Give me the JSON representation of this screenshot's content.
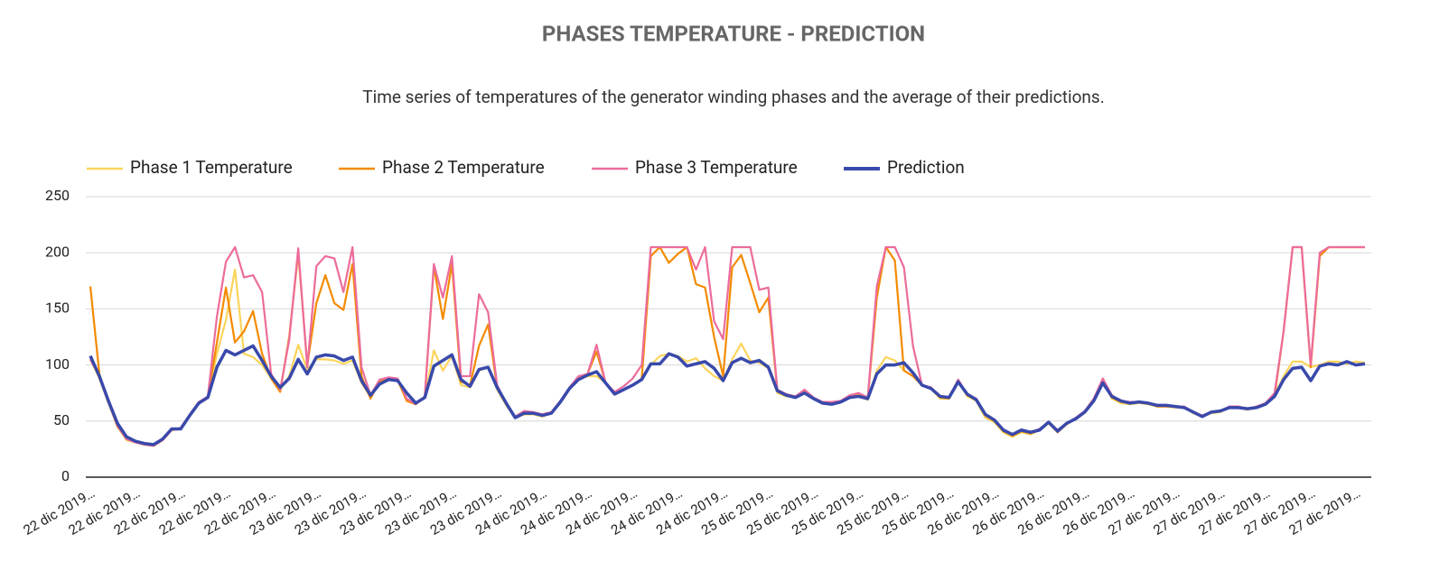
{
  "chart_data": {
    "type": "line",
    "title": "PHASES TEMPERATURE - PREDICTION",
    "subtitle": "Time series of temperatures of the generator winding phases and the average of their predictions.",
    "legend": "top-left",
    "grid": true,
    "ylim": [
      0,
      250
    ],
    "yticks": [
      0,
      50,
      100,
      150,
      200,
      250
    ],
    "categories": [
      "22 dic 2019…",
      null,
      null,
      null,
      null,
      "22 dic 2019…",
      null,
      null,
      null,
      null,
      "22 dic 2019…",
      null,
      null,
      null,
      null,
      "22 dic 2019…",
      null,
      null,
      null,
      null,
      "22 dic 2019…",
      null,
      null,
      null,
      null,
      "23 dic 2019…",
      null,
      null,
      null,
      null,
      "23 dic 2019…",
      null,
      null,
      null,
      null,
      "23 dic 2019…",
      null,
      null,
      null,
      null,
      "23 dic 2019…",
      null,
      null,
      null,
      null,
      "23 dic 2019…",
      null,
      null,
      null,
      null,
      "24 dic 2019…",
      null,
      null,
      null,
      null,
      "24 dic 2019…",
      null,
      null,
      null,
      null,
      "24 dic 2019…",
      null,
      null,
      null,
      null,
      "24 dic 2019…",
      null,
      null,
      null,
      null,
      "24 dic 2019…",
      null,
      null,
      null,
      null,
      "25 dic 2019…",
      null,
      null,
      null,
      null,
      "25 dic 2019…",
      null,
      null,
      null,
      null,
      "25 dic 2019…",
      null,
      null,
      null,
      null,
      "25 dic 2019…",
      null,
      null,
      null,
      null,
      "25 dic 2019…",
      null,
      null,
      null,
      null,
      "26 dic 2019…",
      null,
      null,
      null,
      null,
      "26 dic 2019…",
      null,
      null,
      null,
      null,
      "26 dic 2019…",
      null,
      null,
      null,
      null,
      "26 dic 2019…",
      null,
      null,
      null,
      null,
      "27 dic 2019…",
      null,
      null,
      null,
      null,
      "27 dic 2019…",
      null,
      null,
      null,
      null,
      "27 dic 2019…",
      null,
      null,
      null,
      null,
      "27 dic 2019…",
      null,
      null,
      null,
      null,
      "27 dic 2019…",
      null
    ],
    "series": [
      {
        "name": "Phase 1 Temperature",
        "color": "#fbd45b",
        "values": [
          105,
          88,
          66,
          46,
          33,
          31,
          29,
          28,
          33,
          42,
          43,
          55,
          66,
          71,
          110,
          140,
          185,
          110,
          107,
          100,
          88,
          78,
          90,
          118,
          96,
          105,
          105,
          104,
          101,
          104,
          84,
          71,
          85,
          88,
          86,
          68,
          65,
          71,
          113,
          95,
          108,
          82,
          80,
          95,
          98,
          78,
          64,
          53,
          56,
          56,
          54,
          57,
          67,
          79,
          87,
          90,
          90,
          84,
          74,
          78,
          82,
          87,
          100,
          108,
          110,
          108,
          103,
          106,
          97,
          90,
          86,
          105,
          119,
          104,
          102,
          97,
          75,
          72,
          71,
          76,
          70,
          66,
          65,
          67,
          71,
          72,
          69,
          95,
          107,
          104,
          95,
          90,
          82,
          79,
          70,
          70,
          86,
          72,
          68,
          53,
          49,
          40,
          36,
          40,
          38,
          42,
          48,
          40,
          47,
          52,
          58,
          68,
          86,
          70,
          66,
          65,
          66,
          65,
          63,
          63,
          62,
          62,
          57,
          54,
          57,
          58,
          62,
          62,
          60,
          62,
          65,
          73,
          90,
          103,
          103,
          98,
          100,
          103,
          103,
          101,
          103,
          102
        ]
      },
      {
        "name": "Phase 2 Temperature",
        "color": "#f38b00",
        "values": [
          170,
          92,
          67,
          45,
          34,
          31,
          29,
          28,
          33,
          42,
          43,
          55,
          66,
          71,
          120,
          169,
          120,
          130,
          148,
          110,
          88,
          76,
          125,
          200,
          100,
          155,
          180,
          155,
          149,
          190,
          90,
          70,
          86,
          88,
          87,
          68,
          65,
          72,
          188,
          141,
          190,
          85,
          82,
          117,
          136,
          80,
          66,
          53,
          57,
          57,
          55,
          57,
          67,
          79,
          88,
          92,
          112,
          84,
          74,
          78,
          82,
          88,
          197,
          205,
          191,
          199,
          205,
          172,
          169,
          125,
          90,
          187,
          198,
          173,
          147,
          160,
          77,
          73,
          71,
          77,
          70,
          66,
          66,
          67,
          72,
          73,
          70,
          160,
          205,
          193,
          95,
          90,
          82,
          79,
          71,
          70,
          86,
          73,
          69,
          55,
          50,
          41,
          37,
          41,
          39,
          42,
          49,
          40,
          48,
          52,
          58,
          69,
          87,
          71,
          67,
          66,
          67,
          66,
          63,
          63,
          63,
          62,
          58,
          54,
          58,
          59,
          62,
          63,
          61,
          62,
          65,
          72,
          130,
          205,
          205,
          98,
          197,
          205,
          205,
          205,
          205,
          205
        ]
      },
      {
        "name": "Phase 3 Temperature",
        "color": "#ec6c9c",
        "values": [
          105,
          90,
          67,
          46,
          34,
          31,
          29,
          28,
          33,
          42,
          44,
          56,
          67,
          72,
          143,
          192,
          205,
          178,
          180,
          165,
          92,
          78,
          122,
          204,
          98,
          188,
          197,
          195,
          165,
          205,
          98,
          73,
          87,
          89,
          88,
          70,
          65,
          72,
          190,
          160,
          197,
          90,
          90,
          163,
          147,
          82,
          66,
          54,
          59,
          58,
          56,
          58,
          68,
          80,
          90,
          92,
          118,
          84,
          76,
          81,
          88,
          100,
          205,
          205,
          205,
          205,
          205,
          185,
          205,
          139,
          123,
          205,
          205,
          205,
          167,
          169,
          78,
          74,
          72,
          78,
          71,
          67,
          67,
          68,
          73,
          75,
          71,
          170,
          205,
          205,
          187,
          117,
          82,
          80,
          72,
          71,
          87,
          74,
          70,
          56,
          51,
          42,
          38,
          42,
          40,
          43,
          49,
          42,
          48,
          53,
          59,
          70,
          88,
          73,
          68,
          67,
          67,
          66,
          64,
          64,
          63,
          63,
          58,
          55,
          58,
          59,
          63,
          63,
          61,
          63,
          66,
          75,
          130,
          205,
          205,
          100,
          200,
          205,
          205,
          205,
          205,
          205
        ]
      },
      {
        "name": "Prediction",
        "color": "#3949ab",
        "values": [
          108,
          90,
          68,
          48,
          36,
          32,
          30,
          29,
          34,
          43,
          43,
          55,
          66,
          71,
          98,
          113,
          109,
          113,
          117,
          104,
          90,
          80,
          88,
          105,
          92,
          107,
          109,
          108,
          104,
          107,
          86,
          73,
          83,
          87,
          86,
          75,
          66,
          71,
          99,
          104,
          109,
          87,
          81,
          96,
          98,
          80,
          66,
          53,
          57,
          57,
          55,
          57,
          67,
          79,
          87,
          91,
          94,
          84,
          74,
          78,
          82,
          87,
          101,
          101,
          110,
          107,
          99,
          101,
          103,
          97,
          86,
          102,
          106,
          102,
          104,
          98,
          77,
          73,
          71,
          75,
          70,
          66,
          65,
          67,
          71,
          72,
          70,
          92,
          100,
          100,
          102,
          93,
          82,
          79,
          72,
          71,
          85,
          74,
          69,
          56,
          51,
          42,
          38,
          42,
          40,
          42,
          49,
          41,
          48,
          52,
          58,
          68,
          84,
          72,
          68,
          66,
          67,
          66,
          64,
          64,
          63,
          62,
          58,
          54,
          58,
          59,
          62,
          62,
          61,
          62,
          65,
          72,
          87,
          97,
          98,
          86,
          99,
          101,
          100,
          103,
          100,
          101
        ]
      }
    ]
  }
}
